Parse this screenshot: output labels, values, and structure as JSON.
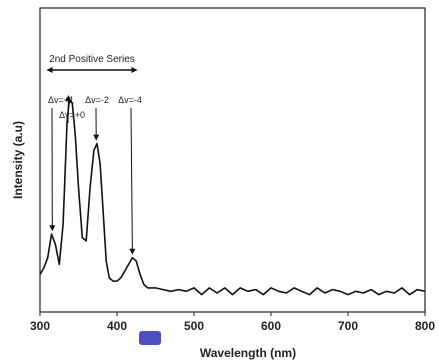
{
  "chart_data": {
    "type": "line",
    "title": "",
    "xlabel": "Wavelength (nm)",
    "ylabel": "Intensity (a.u)",
    "xlim": [
      300,
      800
    ],
    "ylim": [
      0,
      1
    ],
    "grid": false,
    "x_ticks": [
      300,
      400,
      500,
      600,
      700,
      800
    ],
    "x_tick_labels": [
      "300",
      "400",
      "500",
      "600",
      "700",
      "800"
    ],
    "series": [
      {
        "x": [
          300,
          305,
          310,
          315,
          320,
          325,
          330,
          335,
          338,
          342,
          346,
          350,
          355,
          360,
          365,
          370,
          374,
          378,
          382,
          386,
          390,
          395,
          400,
          405,
          410,
          415,
          420,
          425,
          430,
          435,
          440,
          450,
          460,
          470,
          480,
          490,
          500,
          510,
          520,
          530,
          540,
          550,
          560,
          570,
          580,
          590,
          600,
          610,
          620,
          630,
          640,
          650,
          660,
          670,
          680,
          690,
          700,
          710,
          720,
          730,
          740,
          750,
          760,
          770,
          780,
          790,
          800
        ],
        "y": [
          0.07,
          0.09,
          0.12,
          0.19,
          0.16,
          0.1,
          0.22,
          0.52,
          0.59,
          0.58,
          0.48,
          0.33,
          0.18,
          0.17,
          0.33,
          0.44,
          0.46,
          0.4,
          0.26,
          0.11,
          0.06,
          0.05,
          0.05,
          0.06,
          0.08,
          0.1,
          0.12,
          0.11,
          0.07,
          0.04,
          0.03,
          0.03,
          0.025,
          0.02,
          0.025,
          0.02,
          0.03,
          0.01,
          0.03,
          0.015,
          0.03,
          0.01,
          0.03,
          0.02,
          0.025,
          0.01,
          0.03,
          0.02,
          0.015,
          0.03,
          0.02,
          0.01,
          0.03,
          0.015,
          0.025,
          0.02,
          0.01,
          0.02,
          0.015,
          0.025,
          0.01,
          0.02,
          0.015,
          0.03,
          0.01,
          0.025,
          0.02
        ]
      }
    ],
    "annotations": [
      {
        "label": "2nd Positive Series",
        "x_start": 315,
        "x_end": 420
      },
      {
        "label": "Δv=+1",
        "x": 316,
        "y": 0.19
      },
      {
        "label": "Δv=+0",
        "x": 337,
        "y": 0.59
      },
      {
        "label": "Δv=-2",
        "x": 373,
        "y": 0.46
      },
      {
        "label": "Δv=-4",
        "x": 420,
        "y": 0.12
      }
    ]
  }
}
